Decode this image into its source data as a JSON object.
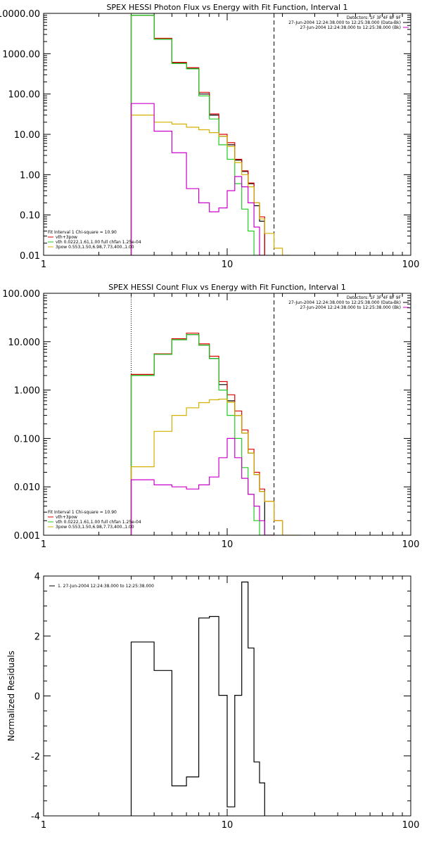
{
  "chart_data": [
    {
      "type": "line",
      "title": "SPEX HESSI Photon Flux vs Energy with Fit Function, Interval 1",
      "xlabel": "",
      "ylabel": "",
      "xscale": "log",
      "yscale": "log",
      "xlim": [
        1,
        100
      ],
      "ylim": [
        0.01,
        10000
      ],
      "x_ticks": [
        "1",
        "10",
        "100"
      ],
      "y_ticks": [
        "0.01",
        "0.10",
        "1.00",
        "10.00",
        "100.00",
        "1000.00",
        "10000.00"
      ],
      "vlines": [
        {
          "x": 3,
          "style": "dotted",
          "color": "#cc9900"
        },
        {
          "x": 18,
          "style": "dashed",
          "color": "#000000"
        }
      ],
      "legend_top": [
        "Detectors: 1F 3F 4F 8F 9F",
        "27-Jun-2004 12:24:38.000 to 12:25:38.000 (Data-Bk)",
        "27-Jun-2004 12:24:38.000 to 12:25:38.000 (Bk)"
      ],
      "legend_bottom": [
        "Fit Interval 1   Chi-square = 10.90",
        "vth+3pow",
        "vth 0.0222,1.61,1.00  full chfan 1.25e-04",
        "3pow 0.553,1.50,6.98,7.73,400.,1.00"
      ],
      "bin_edges": [
        3,
        4,
        5,
        6,
        7,
        8,
        9,
        10,
        11,
        12,
        13,
        14,
        15,
        16,
        18,
        20,
        22
      ],
      "series": [
        {
          "name": "27-Jun-2004 12:24:38.000 to 12:25:38.000 (Data-Bk)",
          "color": "#000000",
          "values": [
            9000,
            2300,
            580,
            430,
            100,
            30,
            9,
            5.5,
            2.3,
            1.2,
            0.6,
            0.17,
            0.07
          ]
        },
        {
          "name": "vth+3pow",
          "color": "#dd0000",
          "values": [
            9000,
            2400,
            610,
            450,
            110,
            32,
            10,
            6.2,
            2.4,
            1.25,
            0.62,
            0.2,
            0.09
          ]
        },
        {
          "name": "vth 0.0222,1.61,1.00  full chfan 1.25e-04",
          "color": "#22cc22",
          "values": [
            9000,
            2300,
            570,
            420,
            90,
            24,
            5.5,
            2.4,
            0.6,
            0.14,
            0.04,
            0.01,
            0.005
          ]
        },
        {
          "name": "3pow 0.553,1.50,6.98,7.73,400.,1.00",
          "color": "#d4b000",
          "values": [
            30,
            20,
            18,
            15,
            13,
            11,
            9,
            5,
            2,
            1,
            0.5,
            0.2,
            0.08,
            0.035,
            0.015,
            0.005
          ]
        },
        {
          "name": "27-Jun-2004 12:24:38.000 to 12:25:38.000 (Bk)",
          "color": "#cc00cc",
          "values": [
            58,
            12,
            3.5,
            0.45,
            0.2,
            0.12,
            0.15,
            0.4,
            0.9,
            0.5,
            0.2,
            0.05,
            0.008
          ]
        }
      ]
    },
    {
      "type": "line",
      "title": "SPEX HESSI Count Flux vs Energy with Fit Function, Interval 1",
      "xlabel": "",
      "ylabel": "",
      "xscale": "log",
      "yscale": "log",
      "xlim": [
        1,
        100
      ],
      "ylim": [
        0.001,
        100
      ],
      "x_ticks": [
        "1",
        "10",
        "100"
      ],
      "y_ticks": [
        "0.001",
        "0.010",
        "0.100",
        "1.000",
        "10.000",
        "100.000"
      ],
      "vlines": [
        {
          "x": 3,
          "style": "dotted",
          "color": "#000000"
        },
        {
          "x": 18,
          "style": "dashed",
          "color": "#000000"
        }
      ],
      "legend_top": [
        "Detectors: 1F 3F 4F 8F 9F",
        "27-Jun-2004 12:24:38.000 to 12:25:38.000 (Data-Bk)",
        "27-Jun-2004 12:24:38.000 to 12:25:38.000 (Bk)"
      ],
      "legend_bottom": [
        "Fit Interval 1   Chi-square = 10.90",
        "vth+3pow",
        "vth 0.0222,1.61,1.00  full chfan 1.25e-04",
        "3pow 0.553,1.50,6.98,7.73,400.,1.00"
      ],
      "bin_edges": [
        3,
        4,
        5,
        6,
        7,
        8,
        9,
        10,
        11,
        12,
        13,
        14,
        15,
        16,
        18,
        20,
        22,
        25
      ],
      "series": [
        {
          "name": "27-Jun-2004 12:24:38.000 to 12:25:38.000 (Data-Bk)",
          "color": "#000000",
          "values": [
            2.0,
            5.5,
            11,
            14,
            8.5,
            4.5,
            1.3,
            0.6,
            0.3,
            0.13,
            0.05,
            0.018,
            0.008,
            0.001
          ]
        },
        {
          "name": "vth+3pow",
          "color": "#dd0000",
          "values": [
            2.1,
            5.6,
            11.5,
            15,
            9,
            5,
            1.5,
            0.8,
            0.37,
            0.15,
            0.06,
            0.02,
            0.009,
            0.005,
            0.002
          ]
        },
        {
          "name": "vth 0.0222,1.61,1.00  full chfan 1.25e-04",
          "color": "#22cc22",
          "values": [
            2.0,
            5.5,
            11,
            14,
            8.5,
            4.5,
            1.0,
            0.3,
            0.1,
            0.025,
            0.007,
            0.002,
            0.001
          ]
        },
        {
          "name": "3pow 0.553,1.50,6.98,7.73,400.,1.00",
          "color": "#d4b000",
          "values": [
            0.026,
            0.14,
            0.3,
            0.43,
            0.55,
            0.63,
            0.65,
            0.56,
            0.3,
            0.13,
            0.05,
            0.018,
            0.008,
            0.005,
            0.002,
            0.001,
            0.001
          ]
        },
        {
          "name": "27-Jun-2004 12:24:38.000 to 12:25:38.000 (Bk)",
          "color": "#cc00cc",
          "values": [
            0.014,
            0.011,
            0.01,
            0.009,
            0.011,
            0.016,
            0.04,
            0.1,
            0.04,
            0.015,
            0.007,
            0.004,
            0.002,
            0.001
          ]
        }
      ]
    },
    {
      "type": "line",
      "title": "",
      "xlabel": "",
      "ylabel": "Normalized Residuals",
      "xscale": "log",
      "yscale": "linear",
      "xlim": [
        1,
        100
      ],
      "ylim": [
        -4,
        4
      ],
      "x_ticks": [
        "1",
        "10",
        "100"
      ],
      "y_ticks": [
        "-4",
        "-2",
        "0",
        "2",
        "4"
      ],
      "legend_top": [
        "1. 27-Jun-2004 12:24:38.000 to 12:25:38.000"
      ],
      "bin_edges": [
        3,
        4,
        5,
        6,
        7,
        8,
        9,
        10,
        11,
        12,
        13,
        14,
        15,
        16,
        18
      ],
      "series": [
        {
          "name": "1. 27-Jun-2004 12:24:38.000 to 12:25:38.000",
          "color": "#000000",
          "values": [
            1.8,
            0.85,
            -3.0,
            -2.7,
            2.6,
            2.65,
            0.02,
            -3.7,
            0.02,
            3.8,
            1.6,
            -2.2,
            -2.9
          ]
        }
      ]
    }
  ]
}
